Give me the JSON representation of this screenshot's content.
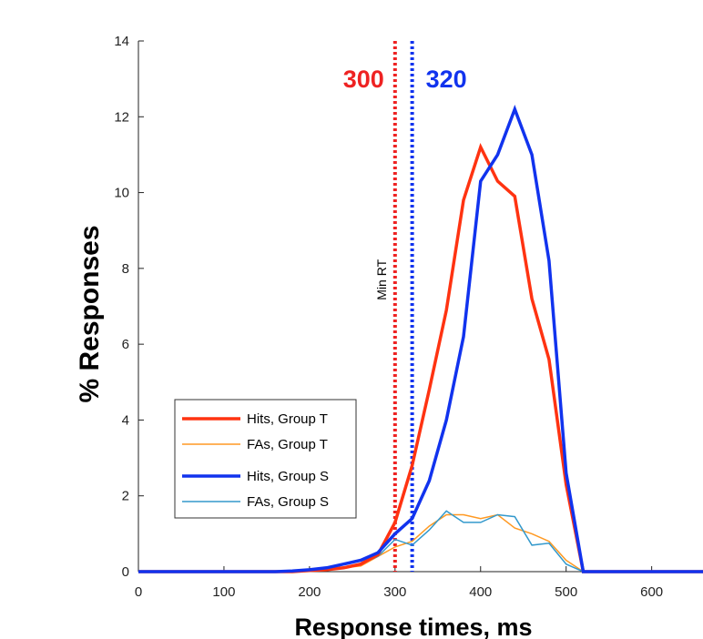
{
  "chart_data": {
    "type": "line",
    "title": "",
    "xlabel": "Response times, ms",
    "ylabel": "% Responses",
    "xlim": [
      0,
      660
    ],
    "ylim": [
      0,
      14
    ],
    "xticks": [
      0,
      100,
      200,
      300,
      400,
      500,
      600
    ],
    "yticks": [
      0,
      2,
      4,
      6,
      8,
      10,
      12,
      14
    ],
    "grid": false,
    "legend_position": "lower-left",
    "x": [
      0,
      20,
      40,
      60,
      80,
      100,
      120,
      140,
      160,
      180,
      200,
      220,
      240,
      260,
      280,
      300,
      320,
      340,
      360,
      380,
      400,
      420,
      440,
      460,
      480,
      500,
      520,
      540,
      560,
      580,
      600,
      620,
      640,
      660
    ],
    "series": [
      {
        "name": "Hits, Group T",
        "color": "#ff3311",
        "width": 3.5,
        "values": [
          0,
          0,
          0,
          0,
          0,
          0,
          0,
          0,
          0,
          0,
          0.03,
          0.05,
          0.1,
          0.2,
          0.45,
          1.3,
          2.8,
          4.8,
          6.9,
          9.8,
          11.2,
          10.3,
          9.9,
          7.2,
          5.6,
          2.3,
          0,
          0,
          0,
          0,
          0,
          0,
          0,
          0
        ]
      },
      {
        "name": "FAs, Group T",
        "color": "#ff9922",
        "width": 1.5,
        "values": [
          0,
          0,
          0,
          0,
          0,
          0,
          0,
          0,
          0,
          0,
          0.02,
          0.05,
          0.1,
          0.15,
          0.4,
          0.65,
          0.8,
          1.2,
          1.5,
          1.5,
          1.4,
          1.5,
          1.15,
          1.0,
          0.8,
          0.3,
          0,
          0,
          0,
          0,
          0,
          0,
          0,
          0
        ]
      },
      {
        "name": "Hits, Group S",
        "color": "#1133ee",
        "width": 3.5,
        "values": [
          0,
          0,
          0,
          0,
          0,
          0,
          0,
          0,
          0,
          0.02,
          0.05,
          0.1,
          0.2,
          0.3,
          0.5,
          1.0,
          1.4,
          2.4,
          4.0,
          6.2,
          10.3,
          11.0,
          12.2,
          11.0,
          8.2,
          2.6,
          0,
          0,
          0,
          0,
          0,
          0,
          0,
          0
        ]
      },
      {
        "name": "FAs, Group S",
        "color": "#3399cc",
        "width": 1.5,
        "values": [
          0,
          0,
          0,
          0,
          0,
          0,
          0,
          0,
          0,
          0,
          0.02,
          0.05,
          0.1,
          0.2,
          0.4,
          0.85,
          0.7,
          1.1,
          1.6,
          1.3,
          1.3,
          1.5,
          1.45,
          0.7,
          0.75,
          0.2,
          0,
          0,
          0,
          0,
          0,
          0,
          0,
          0
        ]
      }
    ],
    "vlines": [
      {
        "x": 300,
        "label": "300",
        "color": "#ee2222"
      },
      {
        "x": 320,
        "label": "320",
        "color": "#1133ee"
      }
    ],
    "annotation": {
      "text": "Min RT",
      "x": 300,
      "y": 7.7
    }
  }
}
